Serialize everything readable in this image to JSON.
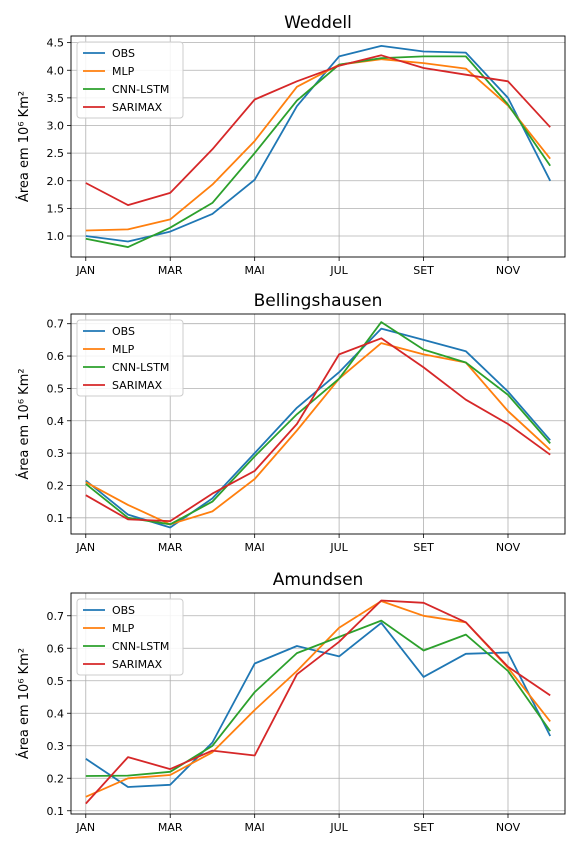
{
  "chart_data": [
    {
      "type": "line",
      "title": "Weddell",
      "ylabel": "Área em 10⁶ Km²",
      "xlabel": "",
      "x": [
        1,
        2,
        3,
        4,
        5,
        6,
        7,
        8,
        9,
        10,
        11,
        12
      ],
      "xticks": [
        1,
        3,
        5,
        7,
        9,
        11
      ],
      "xticklabels": [
        "JAN",
        "MAR",
        "MAI",
        "JUL",
        "SET",
        "NOV"
      ],
      "xlim": [
        0.65,
        12.35
      ],
      "ylim": [
        0.62,
        4.62
      ],
      "yticks": [
        1.0,
        1.5,
        2.0,
        2.5,
        3.0,
        3.5,
        4.0,
        4.5
      ],
      "yticklabels": [
        "1.0",
        "1.5",
        "2.0",
        "2.5",
        "3.0",
        "3.5",
        "4.0",
        "4.5"
      ],
      "grid": true,
      "legend": "top-left",
      "series": [
        {
          "name": "OBS",
          "color": "#1f77b4",
          "values": [
            1.0,
            0.9,
            1.08,
            1.4,
            2.02,
            3.35,
            4.25,
            4.44,
            4.34,
            4.32,
            3.5,
            2.0
          ]
        },
        {
          "name": "MLP",
          "color": "#ff7f0e",
          "values": [
            1.1,
            1.12,
            1.3,
            1.93,
            2.72,
            3.7,
            4.1,
            4.2,
            4.13,
            4.03,
            3.36,
            2.4
          ]
        },
        {
          "name": "CNN-LSTM",
          "color": "#2ca02c",
          "values": [
            0.95,
            0.8,
            1.15,
            1.6,
            2.5,
            3.45,
            4.1,
            4.22,
            4.25,
            4.25,
            3.38,
            2.27
          ]
        },
        {
          "name": "SARIMAX",
          "color": "#d62728",
          "values": [
            1.96,
            1.56,
            1.78,
            2.57,
            3.47,
            3.8,
            4.08,
            4.27,
            4.04,
            3.92,
            3.8,
            2.97
          ]
        }
      ]
    },
    {
      "type": "line",
      "title": "Bellingshausen",
      "ylabel": "Área em 10⁶ Km²",
      "xlabel": "",
      "x": [
        1,
        2,
        3,
        4,
        5,
        6,
        7,
        8,
        9,
        10,
        11,
        12
      ],
      "xticks": [
        1,
        3,
        5,
        7,
        9,
        11
      ],
      "xticklabels": [
        "JAN",
        "MAR",
        "MAI",
        "JUL",
        "SET",
        "NOV"
      ],
      "xlim": [
        0.65,
        12.35
      ],
      "ylim": [
        0.05,
        0.73
      ],
      "yticks": [
        0.1,
        0.2,
        0.3,
        0.4,
        0.5,
        0.6,
        0.7
      ],
      "yticklabels": [
        "0.1",
        "0.2",
        "0.3",
        "0.4",
        "0.5",
        "0.6",
        "0.7"
      ],
      "grid": true,
      "legend": "top-left",
      "series": [
        {
          "name": "OBS",
          "color": "#1f77b4",
          "values": [
            0.215,
            0.11,
            0.07,
            0.16,
            0.3,
            0.44,
            0.55,
            0.685,
            0.65,
            0.615,
            0.49,
            0.34
          ]
        },
        {
          "name": "MLP",
          "color": "#ff7f0e",
          "values": [
            0.21,
            0.14,
            0.08,
            0.12,
            0.22,
            0.37,
            0.53,
            0.64,
            0.605,
            0.58,
            0.43,
            0.31
          ]
        },
        {
          "name": "CNN-LSTM",
          "color": "#2ca02c",
          "values": [
            0.205,
            0.1,
            0.08,
            0.15,
            0.29,
            0.42,
            0.53,
            0.705,
            0.62,
            0.58,
            0.48,
            0.33
          ]
        },
        {
          "name": "SARIMAX",
          "color": "#d62728",
          "values": [
            0.17,
            0.095,
            0.09,
            0.175,
            0.245,
            0.39,
            0.605,
            0.655,
            0.565,
            0.465,
            0.39,
            0.295
          ]
        }
      ]
    },
    {
      "type": "line",
      "title": "Amundsen",
      "ylabel": "Área em 10⁶ Km²",
      "xlabel": "",
      "x": [
        1,
        2,
        3,
        4,
        5,
        6,
        7,
        8,
        9,
        10,
        11,
        12
      ],
      "xticks": [
        1,
        3,
        5,
        7,
        9,
        11
      ],
      "xticklabels": [
        "JAN",
        "MAR",
        "MAI",
        "JUL",
        "SET",
        "NOV"
      ],
      "xlim": [
        0.65,
        12.35
      ],
      "ylim": [
        0.09,
        0.77
      ],
      "yticks": [
        0.1,
        0.2,
        0.3,
        0.4,
        0.5,
        0.6,
        0.7
      ],
      "yticklabels": [
        "0.1",
        "0.2",
        "0.3",
        "0.4",
        "0.5",
        "0.6",
        "0.7"
      ],
      "grid": true,
      "legend": "top-left",
      "series": [
        {
          "name": "OBS",
          "color": "#1f77b4",
          "values": [
            0.26,
            0.173,
            0.18,
            0.31,
            0.553,
            0.607,
            0.575,
            0.678,
            0.512,
            0.583,
            0.587,
            0.33
          ]
        },
        {
          "name": "MLP",
          "color": "#ff7f0e",
          "values": [
            0.143,
            0.2,
            0.21,
            0.28,
            0.41,
            0.53,
            0.663,
            0.745,
            0.7,
            0.68,
            0.54,
            0.375
          ]
        },
        {
          "name": "CNN-LSTM",
          "color": "#2ca02c",
          "values": [
            0.207,
            0.208,
            0.22,
            0.3,
            0.465,
            0.585,
            0.635,
            0.685,
            0.593,
            0.642,
            0.53,
            0.345
          ]
        },
        {
          "name": "SARIMAX",
          "color": "#d62728",
          "values": [
            0.122,
            0.265,
            0.228,
            0.285,
            0.27,
            0.52,
            0.62,
            0.747,
            0.74,
            0.68,
            0.543,
            0.455
          ]
        }
      ]
    }
  ]
}
